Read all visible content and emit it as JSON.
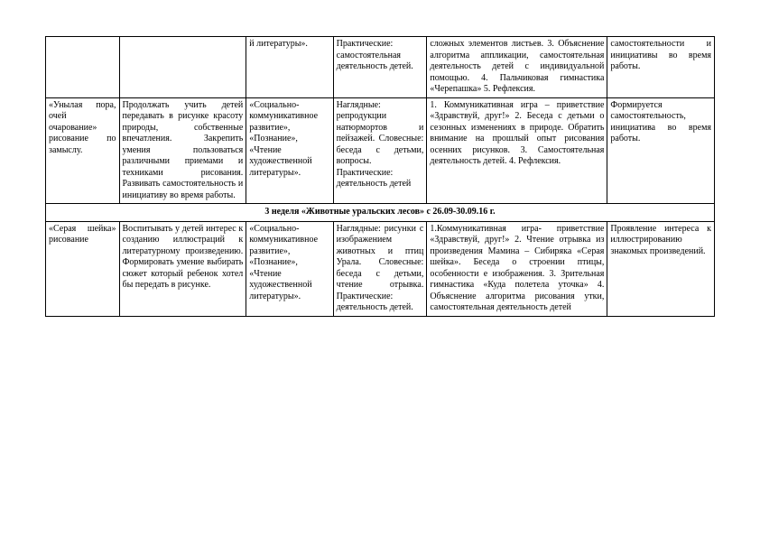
{
  "row1": {
    "c1": "",
    "c2": "",
    "c3": "й литературы».",
    "c4": "Практические: самостоятельная деятельность детей.",
    "c5": "сложных элементов листьев.\n3. Объяснение алгоритма аппликации, самостоятельная деятельность детей с индивидуальной помощью.\n4. Пальчиковая гимнастика «Черепашка»\n5. Рефлексия.",
    "c6": "самостоятельности и инициативы во время работы."
  },
  "row2": {
    "c1": "«Унылая пора, очей очарование» рисование по замыслу.",
    "c2": "Продолжать учить детей передавать в рисунке красоту природы, собственные впечатления. Закрепить умения пользоваться различными приемами и техниками рисования. Развивать самостоятельность и инициативу во время работы.",
    "c3": "«Социально-коммуникативное развитие», «Познание», «Чтение художественной литературы».",
    "c4": "Наглядные: репродукции натюрмортов и пейзажей. Словесные: беседа с детьми, вопросы. Практические: деятельность детей",
    "c5": "1. Коммуникативная игра – приветствие «Здравствуй, друг!»\n2. Беседа с детьми о сезонных изменениях в природе. Обратить внимание на прошлый опыт рисования осенних рисунков.\n3. Самостоятельная деятельность детей.\n4. Рефлексия.",
    "c6": "Формируется самостоятельность, инициатива во время работы."
  },
  "sectionHeader": "3 неделя «Животные уральских лесов» с 26.09-30.09.16 г.",
  "row3": {
    "c1": "«Серая шейка» рисование",
    "c2": "Воспитывать у детей интерес к созданию иллюстраций к литературному произведению. Формировать умение выбирать сюжет который ребенок хотел бы передать в рисунке.",
    "c3": "«Социально-коммуникативное развитие», «Познание», «Чтение художественной литературы».",
    "c4": "Наглядные: рисунки с изображением животных и птиц Урала. Словесные: беседа с детьми, чтение отрывка. Практические: деятельность детей.",
    "c5": "1.Коммуникативная игра- приветствие «Здравствуй, друг!»\n2. Чтение отрывка из произведения Мамина – Сибиряка «Серая шейка». Беседа о строении птицы, особенности е изображения.\n3. Зрительная гимнастика «Куда полетела уточка»\n4. Объяснение алгоритма рисования утки, самостоятельная деятельность детей",
    "c6": "Проявление интереса к иллюстрированию знакомых произведений."
  }
}
